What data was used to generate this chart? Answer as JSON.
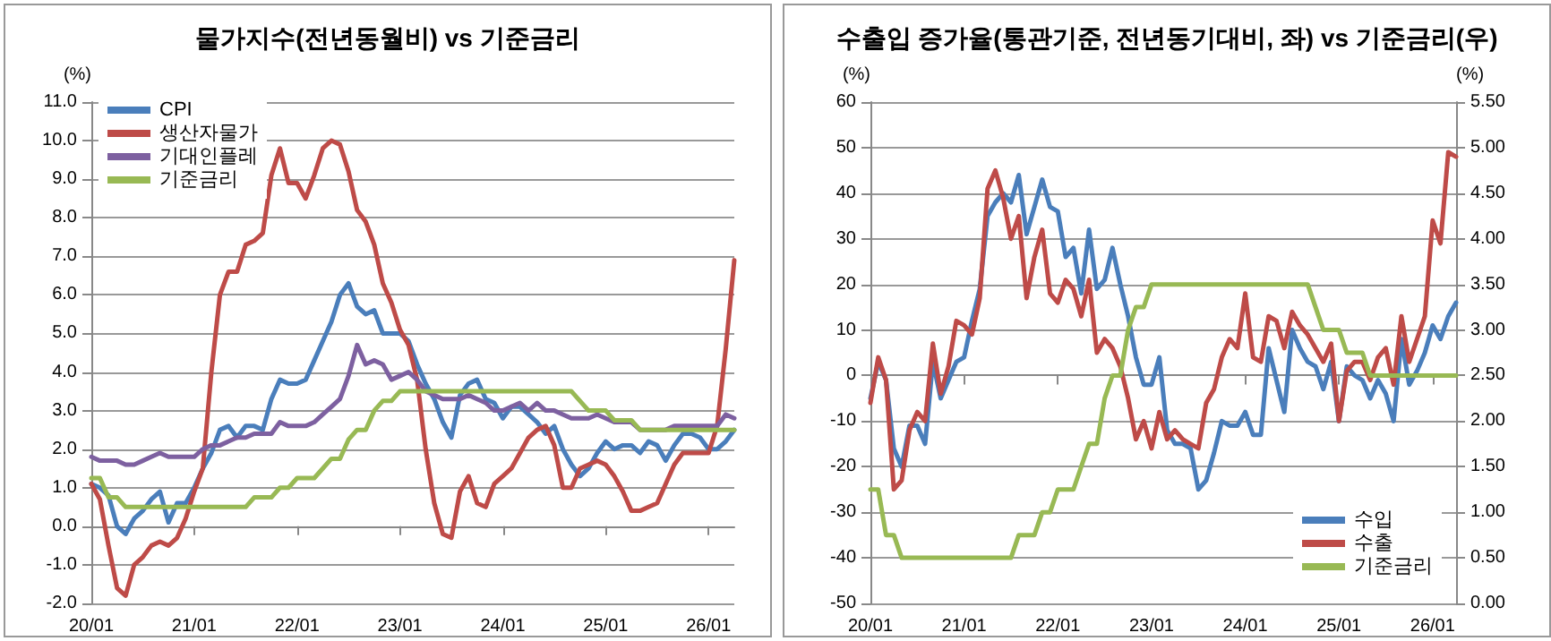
{
  "chart_data": [
    {
      "type": "line",
      "title": "물가지수(전년동월비) vs 기준금리",
      "ylabel": "(%)",
      "categories": [
        "20/01",
        null,
        null,
        null,
        null,
        null,
        null,
        null,
        null,
        null,
        null,
        null,
        "21/01",
        null,
        null,
        null,
        null,
        null,
        null,
        null,
        null,
        null,
        null,
        null,
        "22/01",
        null,
        null,
        null,
        null,
        null,
        null,
        null,
        null,
        null,
        null,
        null,
        "23/01",
        null,
        null,
        null,
        null,
        null,
        null,
        null,
        null,
        null,
        null,
        null,
        "24/01",
        null,
        null,
        null,
        null,
        null,
        null,
        null,
        null,
        null,
        null,
        null,
        "25/01",
        null,
        null,
        null,
        null,
        null,
        null,
        null,
        null,
        null,
        null,
        null,
        "26/01",
        null,
        null,
        null
      ],
      "series": [
        {
          "name": "CPI",
          "color": "#4a7ebb",
          "values": [
            1.1,
            1.0,
            0.8,
            0.0,
            -0.2,
            0.2,
            0.4,
            0.7,
            0.9,
            0.1,
            0.6,
            0.6,
            1.0,
            1.5,
            1.9,
            2.5,
            2.6,
            2.3,
            2.6,
            2.6,
            2.5,
            3.3,
            3.8,
            3.7,
            3.7,
            3.8,
            4.3,
            4.8,
            5.3,
            6.0,
            6.3,
            5.7,
            5.5,
            5.6,
            5.0,
            5.0,
            5.0,
            4.8,
            4.2,
            3.7,
            3.3,
            2.7,
            2.3,
            3.4,
            3.7,
            3.8,
            3.3,
            3.2,
            2.8,
            3.1,
            3.1,
            2.9,
            2.7,
            2.4,
            2.6,
            2.0,
            1.6,
            1.3,
            1.5,
            1.9,
            2.2,
            2.0,
            2.1,
            2.1,
            1.9,
            2.2,
            2.1,
            1.7,
            2.1,
            2.4,
            2.4,
            2.3,
            2.0,
            2.0,
            2.2,
            2.5
          ]
        },
        {
          "name": "생산자물가",
          "color": "#be4b48",
          "values": [
            1.1,
            0.7,
            -0.5,
            -1.6,
            -1.8,
            -1.0,
            -0.8,
            -0.5,
            -0.4,
            -0.5,
            -0.3,
            0.2,
            0.9,
            1.5,
            4.0,
            6.0,
            6.6,
            6.6,
            7.3,
            7.4,
            7.6,
            9.1,
            9.8,
            8.9,
            8.9,
            8.5,
            9.1,
            9.8,
            10.0,
            9.9,
            9.2,
            8.2,
            7.9,
            7.3,
            6.3,
            5.8,
            5.1,
            4.7,
            3.8,
            2.0,
            0.6,
            -0.2,
            -0.3,
            0.9,
            1.3,
            0.6,
            0.5,
            1.1,
            1.3,
            1.5,
            1.9,
            2.3,
            2.5,
            2.6,
            2.1,
            1.0,
            1.0,
            1.5,
            1.6,
            1.7,
            1.6,
            1.3,
            0.9,
            0.4,
            0.4,
            0.5,
            0.6,
            1.1,
            1.6,
            1.9,
            1.9,
            1.9,
            1.9,
            2.6,
            4.6,
            6.9
          ]
        },
        {
          "name": "기대인플레",
          "color": "#7d60a0",
          "values": [
            1.8,
            1.7,
            1.7,
            1.7,
            1.6,
            1.6,
            1.7,
            1.8,
            1.9,
            1.8,
            1.8,
            1.8,
            1.8,
            2.0,
            2.1,
            2.1,
            2.2,
            2.3,
            2.3,
            2.4,
            2.4,
            2.4,
            2.7,
            2.6,
            2.6,
            2.6,
            2.7,
            2.9,
            3.1,
            3.3,
            3.9,
            4.7,
            4.2,
            4.3,
            4.2,
            3.8,
            3.9,
            4.0,
            3.8,
            3.5,
            3.4,
            3.3,
            3.3,
            3.3,
            3.4,
            3.3,
            3.2,
            3.0,
            3.0,
            3.1,
            3.2,
            3.0,
            3.2,
            3.0,
            3.0,
            2.9,
            2.8,
            2.8,
            2.8,
            2.9,
            2.8,
            2.7,
            2.7,
            2.7,
            2.5,
            2.5,
            2.5,
            2.5,
            2.6,
            2.6,
            2.6,
            2.6,
            2.6,
            2.6,
            2.9,
            2.8
          ]
        },
        {
          "name": "기준금리",
          "color": "#98b954",
          "values": [
            1.25,
            1.25,
            0.75,
            0.75,
            0.5,
            0.5,
            0.5,
            0.5,
            0.5,
            0.5,
            0.5,
            0.5,
            0.5,
            0.5,
            0.5,
            0.5,
            0.5,
            0.5,
            0.5,
            0.75,
            0.75,
            0.75,
            1.0,
            1.0,
            1.25,
            1.25,
            1.25,
            1.5,
            1.75,
            1.75,
            2.25,
            2.5,
            2.5,
            3.0,
            3.25,
            3.25,
            3.5,
            3.5,
            3.5,
            3.5,
            3.5,
            3.5,
            3.5,
            3.5,
            3.5,
            3.5,
            3.5,
            3.5,
            3.5,
            3.5,
            3.5,
            3.5,
            3.5,
            3.5,
            3.5,
            3.5,
            3.5,
            3.25,
            3.0,
            3.0,
            3.0,
            2.75,
            2.75,
            2.75,
            2.5,
            2.5,
            2.5,
            2.5,
            2.5,
            2.5,
            2.5,
            2.5,
            2.5,
            2.5,
            2.5,
            2.5
          ]
        }
      ],
      "ylim": [
        -2,
        11
      ],
      "yticks": [
        {
          "value": -2,
          "label": "-2.0"
        },
        {
          "value": -1,
          "label": "-1.0"
        },
        {
          "value": 0,
          "label": "0.0"
        },
        {
          "value": 1,
          "label": "1.0"
        },
        {
          "value": 2,
          "label": "2.0"
        },
        {
          "value": 3,
          "label": "3.0"
        },
        {
          "value": 4,
          "label": "4.0"
        },
        {
          "value": 5,
          "label": "5.0"
        },
        {
          "value": 6,
          "label": "6.0"
        },
        {
          "value": 7,
          "label": "7.0"
        },
        {
          "value": 8,
          "label": "8.0"
        },
        {
          "value": 9,
          "label": "9.0"
        },
        {
          "value": 10,
          "label": "10.0"
        },
        {
          "value": 11,
          "label": "11.0"
        }
      ],
      "grid": "y",
      "legend": "top left",
      "marker": "none",
      "line_style": "solid"
    },
    {
      "type": "line",
      "title": "수출입 증가율(통관기준, 전년동기대비, 좌) vs 기준금리(우)",
      "ylabel": "(%)",
      "y2label": "(%)",
      "categories": [
        "20/01",
        null,
        null,
        null,
        null,
        null,
        null,
        null,
        null,
        null,
        null,
        null,
        "21/01",
        null,
        null,
        null,
        null,
        null,
        null,
        null,
        null,
        null,
        null,
        null,
        "22/01",
        null,
        null,
        null,
        null,
        null,
        null,
        null,
        null,
        null,
        null,
        null,
        "23/01",
        null,
        null,
        null,
        null,
        null,
        null,
        null,
        null,
        null,
        null,
        null,
        "24/01",
        null,
        null,
        null,
        null,
        null,
        null,
        null,
        null,
        null,
        null,
        null,
        "25/01",
        null,
        null,
        null,
        null,
        null,
        null,
        null,
        null,
        null,
        null,
        null,
        "26/01",
        null,
        null,
        null
      ],
      "series": [
        {
          "name": "수입",
          "color": "#4a7ebb",
          "values": [
            -5,
            3,
            -1,
            -16,
            -20,
            -11,
            -11,
            -15,
            3,
            -5,
            -1,
            3,
            4,
            12,
            19,
            35,
            38,
            40,
            38,
            44,
            31,
            37,
            43,
            37,
            36,
            26,
            28,
            18,
            32,
            19,
            21,
            28,
            20,
            13,
            4,
            -2,
            -2,
            4,
            -12,
            -15,
            -15,
            -16,
            -25,
            -23,
            -17,
            -10,
            -11,
            -11,
            -8,
            -13,
            -13,
            6,
            -1,
            -8,
            10,
            6,
            3,
            2,
            -3,
            3,
            -10,
            2,
            0,
            -1,
            -5,
            -1,
            -4,
            -10,
            8,
            -2,
            1,
            5,
            11,
            8,
            13,
            16
          ]
        },
        {
          "name": "수출",
          "color": "#be4b48",
          "values": [
            -6,
            4,
            -1,
            -25,
            -23,
            -12,
            -8,
            -10,
            7,
            -4,
            2,
            12,
            11,
            9,
            17,
            41,
            45,
            39,
            30,
            35,
            17,
            26,
            32,
            18,
            16,
            21,
            19,
            13,
            21,
            5,
            8,
            6,
            2,
            -5,
            -14,
            -10,
            -16,
            -8,
            -14,
            -12,
            -14,
            -15,
            -16,
            -6,
            -3,
            4,
            8,
            6,
            18,
            4,
            3,
            13,
            12,
            6,
            14,
            11,
            9,
            6,
            3,
            7,
            -10,
            1,
            3,
            3,
            -1,
            4,
            6,
            -2,
            13,
            3,
            8,
            13,
            34,
            29,
            49,
            48
          ]
        },
        {
          "name": "기준금리",
          "color": "#98b954",
          "axis": "y2",
          "values": [
            1.25,
            1.25,
            0.75,
            0.75,
            0.5,
            0.5,
            0.5,
            0.5,
            0.5,
            0.5,
            0.5,
            0.5,
            0.5,
            0.5,
            0.5,
            0.5,
            0.5,
            0.5,
            0.5,
            0.75,
            0.75,
            0.75,
            1.0,
            1.0,
            1.25,
            1.25,
            1.25,
            1.5,
            1.75,
            1.75,
            2.25,
            2.5,
            2.5,
            3.0,
            3.25,
            3.25,
            3.5,
            3.5,
            3.5,
            3.5,
            3.5,
            3.5,
            3.5,
            3.5,
            3.5,
            3.5,
            3.5,
            3.5,
            3.5,
            3.5,
            3.5,
            3.5,
            3.5,
            3.5,
            3.5,
            3.5,
            3.5,
            3.25,
            3.0,
            3.0,
            3.0,
            2.75,
            2.75,
            2.75,
            2.5,
            2.5,
            2.5,
            2.5,
            2.5,
            2.5,
            2.5,
            2.5,
            2.5,
            2.5,
            2.5,
            2.5
          ]
        }
      ],
      "ylim": [
        -50,
        60
      ],
      "yticks": [
        -50,
        -40,
        -30,
        -20,
        -10,
        0,
        10,
        20,
        30,
        40,
        50,
        60
      ],
      "y2lim": [
        0,
        5.5
      ],
      "y2ticks": [
        {
          "value": 0,
          "label": "0.00"
        },
        {
          "value": 0.5,
          "label": "0.50"
        },
        {
          "value": 1,
          "label": "1.00"
        },
        {
          "value": 1.5,
          "label": "1.50"
        },
        {
          "value": 2,
          "label": "2.00"
        },
        {
          "value": 2.5,
          "label": "2.50"
        },
        {
          "value": 3,
          "label": "3.00"
        },
        {
          "value": 3.5,
          "label": "3.50"
        },
        {
          "value": 4,
          "label": "4.00"
        },
        {
          "value": 4.5,
          "label": "4.50"
        },
        {
          "value": 5,
          "label": "5.00"
        },
        {
          "value": 5.5,
          "label": "5.50"
        }
      ],
      "grid": "y",
      "legend": "bottom right",
      "marker": "none",
      "line_style": "solid"
    }
  ]
}
